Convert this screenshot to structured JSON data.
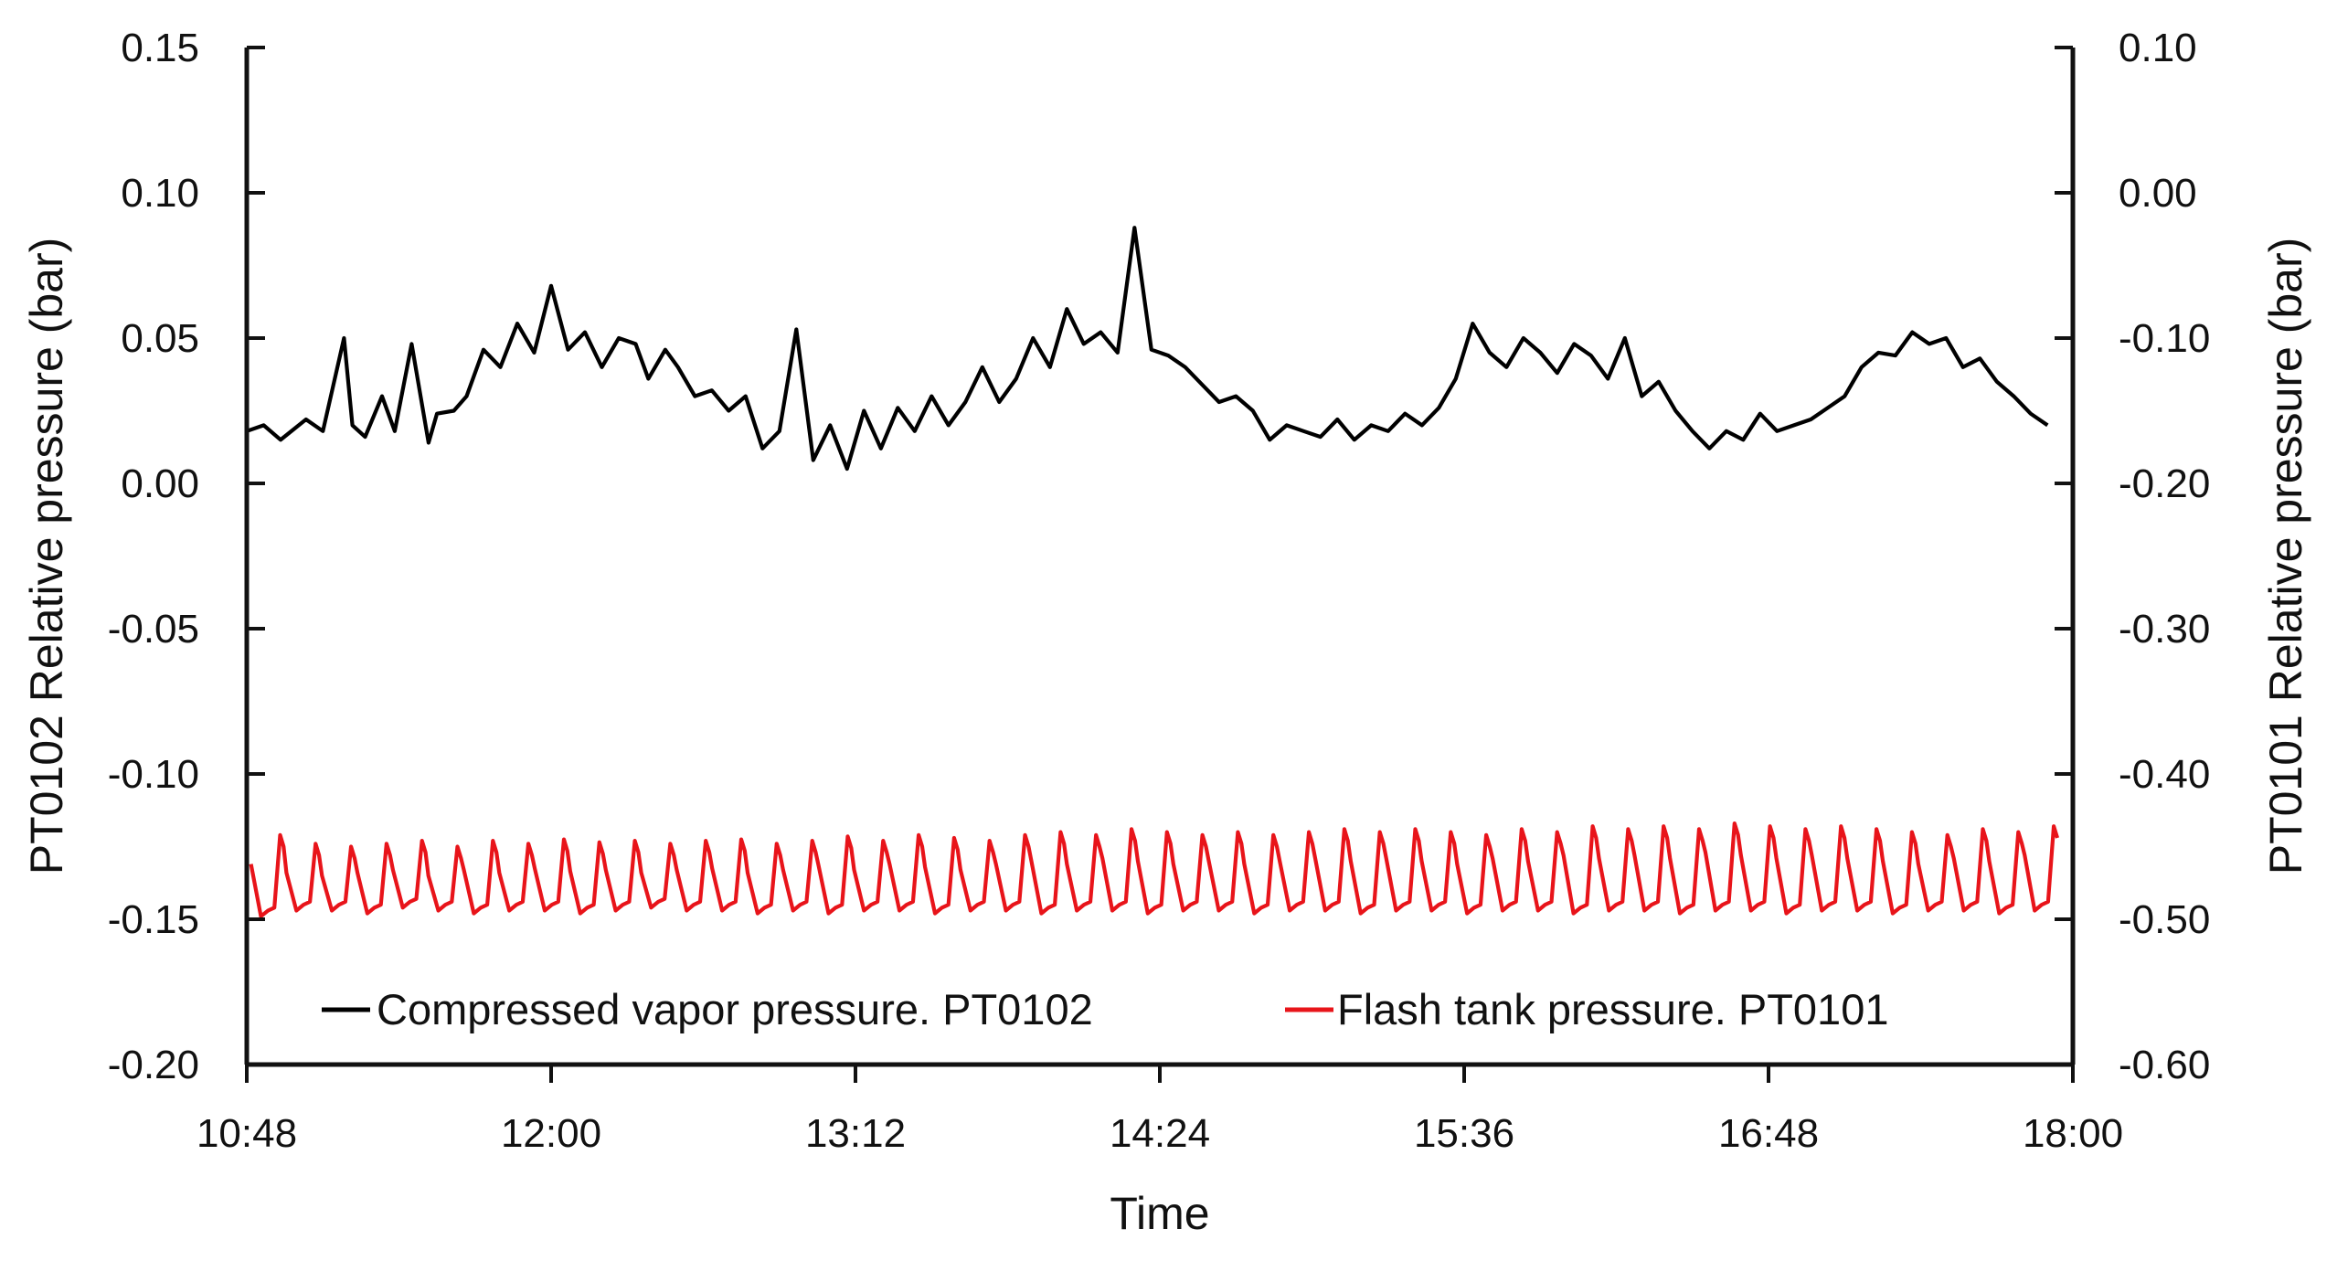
{
  "chart_data": {
    "type": "line",
    "title": "",
    "xlabel": "Time",
    "ylabel_left": "PT0102 Relative pressure (bar)",
    "ylabel_right": "PT0101 Relative pressure (bar)",
    "x_ticks": [
      "10:48",
      "12:00",
      "13:12",
      "14:24",
      "15:36",
      "16:48",
      "18:00"
    ],
    "x_range_minutes": [
      648,
      1080
    ],
    "y_left_ticks": [
      "0.15",
      "0.10",
      "0.05",
      "0.00",
      "-0.05",
      "-0.10",
      "-0.15",
      "-0.20"
    ],
    "y_left_lim": [
      -0.2,
      0.15
    ],
    "y_right_ticks": [
      "0.10",
      "0.00",
      "-0.10",
      "-0.20",
      "-0.30",
      "-0.40",
      "-0.50",
      "-0.60"
    ],
    "y_right_lim": [
      -0.6,
      0.1
    ],
    "legend_position": "bottom-center",
    "series": [
      {
        "name": "Compressed vapor pressure. PT0102",
        "axis": "left",
        "color": "#000000",
        "x_minutes": [
          648,
          652,
          656,
          662,
          666,
          671,
          673,
          676,
          680,
          683,
          687,
          691,
          693,
          697,
          700,
          704,
          708,
          712,
          716,
          720,
          724,
          728,
          732,
          736,
          740,
          743,
          747,
          750,
          754,
          758,
          762,
          766,
          770,
          774,
          778,
          782,
          786,
          790,
          794,
          798,
          802,
          806,
          810,
          814,
          818,
          822,
          826,
          830,
          834,
          838,
          842,
          846,
          850,
          854,
          858,
          862,
          866,
          870,
          874,
          878,
          882,
          886,
          890,
          894,
          898,
          902,
          906,
          910,
          914,
          918,
          922,
          926,
          930,
          934,
          938,
          942,
          946,
          950,
          954,
          958,
          962,
          966,
          970,
          974,
          978,
          982,
          986,
          990,
          994,
          998,
          1002,
          1006,
          1010,
          1014,
          1018,
          1022,
          1026,
          1030,
          1034,
          1038,
          1042,
          1046,
          1050,
          1054,
          1058,
          1062,
          1066,
          1070,
          1074
        ],
        "values": [
          0.018,
          0.02,
          0.015,
          0.022,
          0.018,
          0.05,
          0.02,
          0.016,
          0.03,
          0.018,
          0.048,
          0.014,
          0.024,
          0.025,
          0.03,
          0.046,
          0.04,
          0.055,
          0.045,
          0.068,
          0.046,
          0.052,
          0.04,
          0.05,
          0.048,
          0.036,
          0.046,
          0.04,
          0.03,
          0.032,
          0.025,
          0.03,
          0.012,
          0.018,
          0.053,
          0.008,
          0.02,
          0.005,
          0.025,
          0.012,
          0.026,
          0.018,
          0.03,
          0.02,
          0.028,
          0.04,
          0.028,
          0.036,
          0.05,
          0.04,
          0.06,
          0.048,
          0.052,
          0.045,
          0.088,
          0.046,
          0.044,
          0.04,
          0.034,
          0.028,
          0.03,
          0.025,
          0.015,
          0.02,
          0.018,
          0.016,
          0.022,
          0.015,
          0.02,
          0.018,
          0.024,
          0.02,
          0.026,
          0.036,
          0.055,
          0.045,
          0.04,
          0.05,
          0.045,
          0.038,
          0.048,
          0.044,
          0.036,
          0.05,
          0.03,
          0.035,
          0.025,
          0.018,
          0.012,
          0.018,
          0.015,
          0.024,
          0.018,
          0.02,
          0.022,
          0.026,
          0.03,
          0.04,
          0.045,
          0.044,
          0.052,
          0.048,
          0.05,
          0.04,
          0.043,
          0.035,
          0.03,
          0.024,
          0.02
        ]
      },
      {
        "name": "Flash tank pressure. PT0101",
        "axis": "right",
        "color": "#e8141a",
        "cycle_count": 51,
        "x_start_minutes": 649,
        "x_end_minutes": 1077,
        "peaks": [
          -0.462,
          -0.468,
          -0.47,
          -0.468,
          -0.466,
          -0.47,
          -0.466,
          -0.468,
          -0.465,
          -0.467,
          -0.466,
          -0.468,
          -0.466,
          -0.465,
          -0.468,
          -0.466,
          -0.463,
          -0.466,
          -0.462,
          -0.464,
          -0.466,
          -0.462,
          -0.46,
          -0.462,
          -0.458,
          -0.46,
          -0.462,
          -0.46,
          -0.462,
          -0.46,
          -0.458,
          -0.46,
          -0.458,
          -0.46,
          -0.462,
          -0.458,
          -0.46,
          -0.456,
          -0.458,
          -0.456,
          -0.458,
          -0.454,
          -0.456,
          -0.458,
          -0.456,
          -0.458,
          -0.46,
          -0.462,
          -0.458,
          -0.46,
          -0.456
        ],
        "troughs": [
          -0.498,
          -0.494,
          -0.494,
          -0.496,
          -0.492,
          -0.494,
          -0.496,
          -0.494,
          -0.494,
          -0.496,
          -0.494,
          -0.492,
          -0.494,
          -0.494,
          -0.496,
          -0.494,
          -0.496,
          -0.494,
          -0.494,
          -0.496,
          -0.494,
          -0.494,
          -0.496,
          -0.494,
          -0.494,
          -0.496,
          -0.494,
          -0.494,
          -0.496,
          -0.494,
          -0.494,
          -0.496,
          -0.494,
          -0.494,
          -0.496,
          -0.494,
          -0.494,
          -0.496,
          -0.494,
          -0.494,
          -0.496,
          -0.494,
          -0.494,
          -0.496,
          -0.494,
          -0.494,
          -0.496,
          -0.494,
          -0.494,
          -0.496,
          -0.494
        ]
      }
    ]
  }
}
